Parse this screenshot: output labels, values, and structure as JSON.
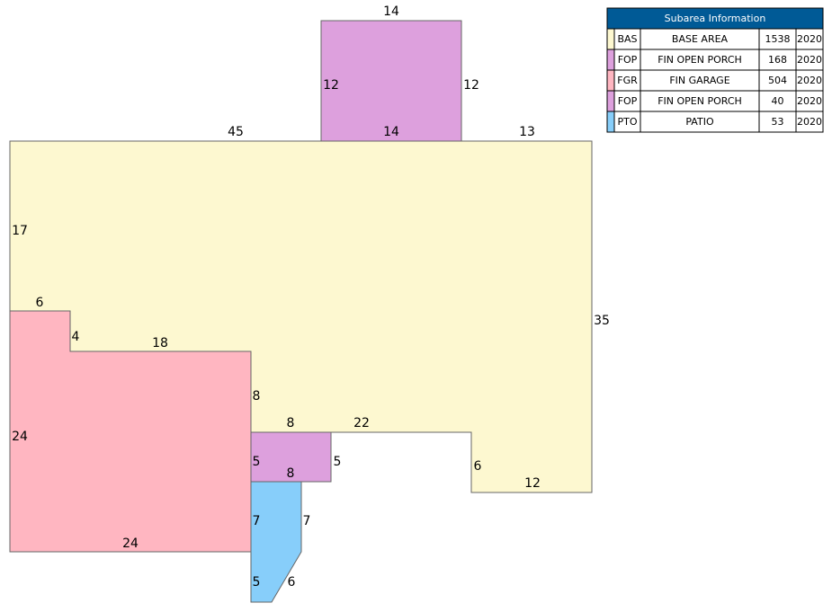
{
  "sketch": {
    "dimensions": [
      "14",
      "12",
      "12",
      "14",
      "45",
      "13",
      "17",
      "35",
      "6",
      "4",
      "18",
      "8",
      "24",
      "8",
      "22",
      "5",
      "5",
      "8",
      "6",
      "12",
      "7",
      "7",
      "5",
      "6",
      "24"
    ]
  },
  "table": {
    "title": "Subarea Information",
    "rows": [
      [
        "BAS",
        "BASE AREA",
        "1538",
        "2020"
      ],
      [
        "FOP",
        "FIN OPEN PORCH",
        "168",
        "2020"
      ],
      [
        "FGR",
        "FIN GARAGE",
        "504",
        "2020"
      ],
      [
        "FOP",
        "FIN OPEN PORCH",
        "40",
        "2020"
      ],
      [
        "PTO",
        "PATIO",
        "53",
        "2020"
      ]
    ]
  }
}
